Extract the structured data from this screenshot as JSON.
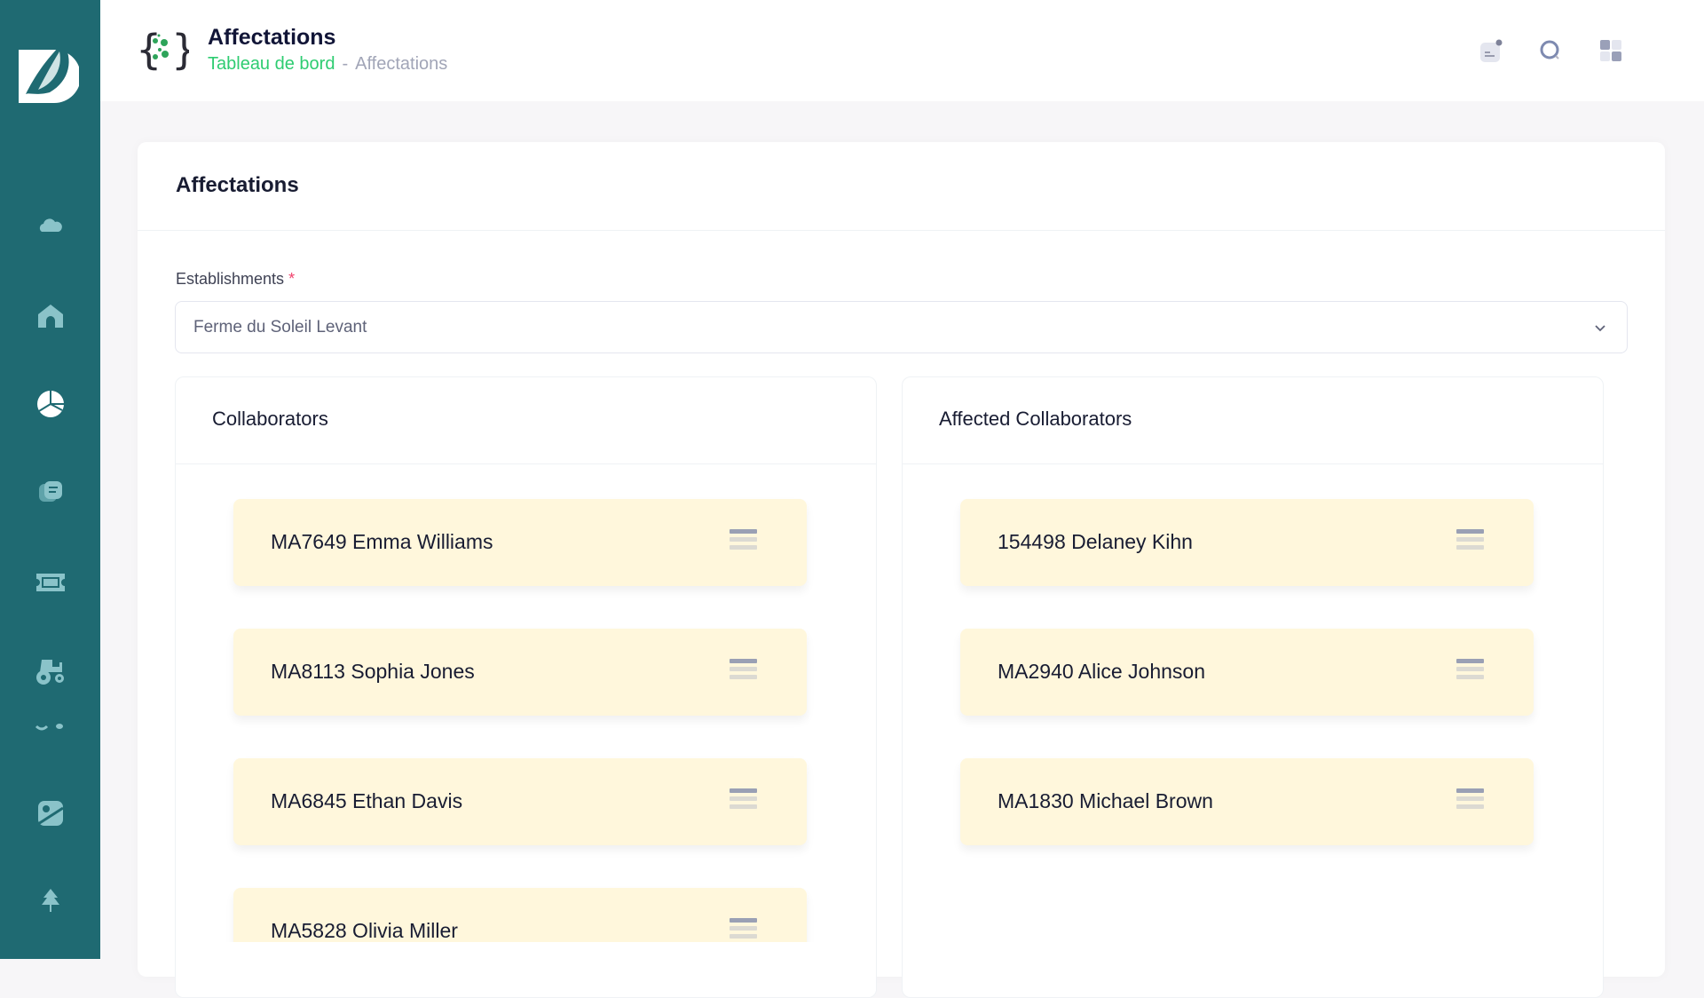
{
  "header": {
    "title": "Affectations",
    "breadcrumb": {
      "home": "Tableau de bord",
      "separator": "-",
      "current": "Affectations"
    }
  },
  "sidebar": {
    "items": [
      "cloud-icon",
      "home-icon",
      "pie-chart-icon",
      "notes-icon",
      "ticket-icon",
      "tractor-icon",
      "tools-icon",
      "map-icon",
      "tree-icon"
    ],
    "active": "pie-chart-icon"
  },
  "page": {
    "title": "Affectations",
    "establishments_label": "Establishments",
    "required_mark": "*",
    "establishment_value": "Ferme du Soleil Levant"
  },
  "collaborators": {
    "title": "Collaborators",
    "items": [
      "MA7649 Emma Williams",
      "MA8113 Sophia Jones",
      "MA6845 Ethan Davis",
      "MA5828 Olivia Miller"
    ]
  },
  "affected": {
    "title": "Affected Collaborators",
    "items": [
      "154498 Delaney Kihn",
      "MA2940 Alice Johnson",
      "MA1830 Michael Brown"
    ]
  },
  "colors": {
    "sidebar": "#1f6a72",
    "accent": "#2ecc71",
    "card": "#fff7dc"
  }
}
